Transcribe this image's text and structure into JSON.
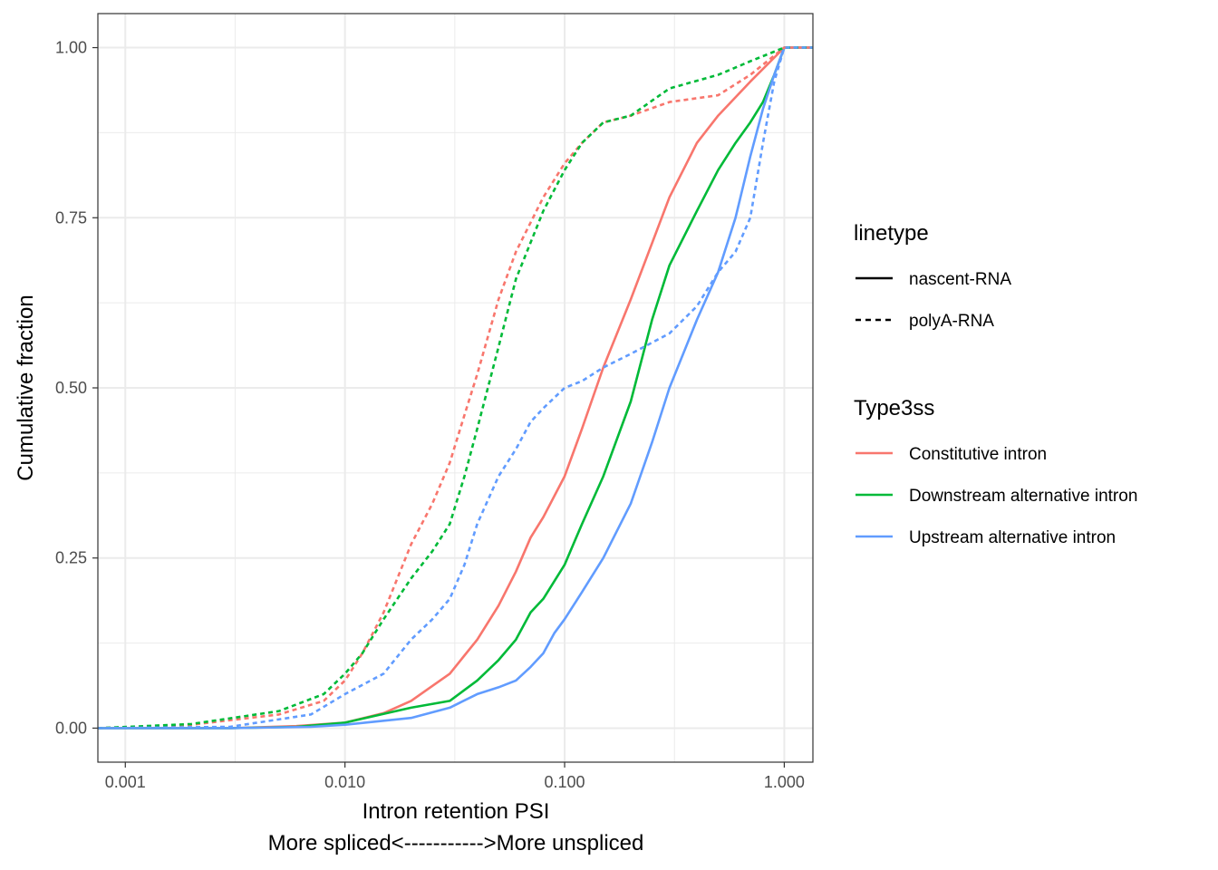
{
  "chart_data": {
    "type": "line",
    "title": "",
    "xlabel_line1": "Intron retention PSI",
    "xlabel_line2": "More spliced<----------->More unspliced",
    "ylabel": "Cumulative fraction",
    "x_scale": "log10",
    "xlim": [
      0.00075,
      1.35
    ],
    "ylim": [
      -0.05,
      1.05
    ],
    "x_ticks": [
      0.001,
      0.01,
      0.1,
      1.0
    ],
    "x_tick_labels": [
      "0.001",
      "0.010",
      "0.100",
      "1.000"
    ],
    "y_ticks": [
      0,
      0.25,
      0.5,
      0.75,
      1.0
    ],
    "y_tick_labels": [
      "0.00",
      "0.25",
      "0.50",
      "0.75",
      "1.00"
    ],
    "grid": true,
    "legend_position": "right",
    "legends": [
      {
        "title": "linetype",
        "entries": [
          {
            "label": "nascent-RNA",
            "dash": "solid"
          },
          {
            "label": "polyA-RNA",
            "dash": "dashed"
          }
        ]
      },
      {
        "title": "Type3ss",
        "entries": [
          {
            "label": "Constitutive intron",
            "color": "#F8766D"
          },
          {
            "label": "Downstream alternative intron",
            "color": "#00BA38"
          },
          {
            "label": "Upstream alternative intron",
            "color": "#619CFF"
          }
        ]
      }
    ],
    "series": [
      {
        "type3ss": "Constitutive intron",
        "linetype": "nascent-RNA",
        "color": "#F8766D",
        "dash": "solid",
        "x": [
          0.00075,
          0.003,
          0.006,
          0.01,
          0.015,
          0.02,
          0.03,
          0.04,
          0.05,
          0.06,
          0.07,
          0.08,
          0.1,
          0.12,
          0.15,
          0.2,
          0.3,
          0.4,
          0.5,
          0.7,
          1.0,
          1.35
        ],
        "y": [
          0.0,
          0.0,
          0.003,
          0.008,
          0.022,
          0.04,
          0.08,
          0.13,
          0.18,
          0.23,
          0.28,
          0.31,
          0.37,
          0.44,
          0.53,
          0.63,
          0.78,
          0.86,
          0.9,
          0.95,
          1.0,
          1.0
        ]
      },
      {
        "type3ss": "Downstream alternative intron",
        "linetype": "nascent-RNA",
        "color": "#00BA38",
        "dash": "solid",
        "x": [
          0.00075,
          0.003,
          0.006,
          0.01,
          0.02,
          0.03,
          0.04,
          0.05,
          0.06,
          0.07,
          0.08,
          0.1,
          0.12,
          0.15,
          0.2,
          0.25,
          0.3,
          0.4,
          0.5,
          0.6,
          0.7,
          0.8,
          0.9,
          1.0,
          1.35
        ],
        "y": [
          0.0,
          0.0,
          0.002,
          0.008,
          0.03,
          0.04,
          0.07,
          0.1,
          0.13,
          0.17,
          0.19,
          0.24,
          0.3,
          0.37,
          0.48,
          0.6,
          0.68,
          0.76,
          0.82,
          0.86,
          0.89,
          0.92,
          0.96,
          1.0,
          1.0
        ]
      },
      {
        "type3ss": "Upstream alternative intron",
        "linetype": "nascent-RNA",
        "color": "#619CFF",
        "dash": "solid",
        "x": [
          0.00075,
          0.003,
          0.007,
          0.01,
          0.02,
          0.03,
          0.04,
          0.05,
          0.06,
          0.07,
          0.08,
          0.09,
          0.1,
          0.12,
          0.15,
          0.2,
          0.25,
          0.3,
          0.4,
          0.5,
          0.6,
          0.7,
          0.8,
          0.9,
          1.0,
          1.35
        ],
        "y": [
          0.0,
          0.0,
          0.002,
          0.005,
          0.015,
          0.03,
          0.05,
          0.06,
          0.07,
          0.09,
          0.11,
          0.14,
          0.16,
          0.2,
          0.25,
          0.33,
          0.42,
          0.5,
          0.6,
          0.67,
          0.75,
          0.84,
          0.91,
          0.96,
          1.0,
          1.0
        ]
      },
      {
        "type3ss": "Constitutive intron",
        "linetype": "polyA-RNA",
        "color": "#F8766D",
        "dash": "dashed",
        "x": [
          0.00075,
          0.002,
          0.005,
          0.008,
          0.01,
          0.012,
          0.015,
          0.02,
          0.025,
          0.03,
          0.035,
          0.04,
          0.05,
          0.06,
          0.08,
          0.1,
          0.12,
          0.15,
          0.2,
          0.3,
          0.5,
          0.7,
          1.0,
          1.35
        ],
        "y": [
          0.0,
          0.005,
          0.02,
          0.04,
          0.07,
          0.11,
          0.17,
          0.27,
          0.33,
          0.39,
          0.46,
          0.52,
          0.63,
          0.7,
          0.78,
          0.83,
          0.86,
          0.89,
          0.9,
          0.92,
          0.93,
          0.96,
          1.0,
          1.0
        ]
      },
      {
        "type3ss": "Downstream alternative intron",
        "linetype": "polyA-RNA",
        "color": "#00BA38",
        "dash": "dashed",
        "x": [
          0.00075,
          0.002,
          0.005,
          0.008,
          0.01,
          0.012,
          0.015,
          0.02,
          0.025,
          0.03,
          0.035,
          0.04,
          0.05,
          0.06,
          0.08,
          0.1,
          0.12,
          0.15,
          0.2,
          0.3,
          0.5,
          0.7,
          1.0,
          1.35
        ],
        "y": [
          0.0,
          0.006,
          0.025,
          0.05,
          0.08,
          0.11,
          0.16,
          0.22,
          0.26,
          0.3,
          0.37,
          0.44,
          0.56,
          0.66,
          0.76,
          0.82,
          0.86,
          0.89,
          0.9,
          0.94,
          0.96,
          0.98,
          1.0,
          1.0
        ]
      },
      {
        "type3ss": "Upstream alternative intron",
        "linetype": "polyA-RNA",
        "color": "#619CFF",
        "dash": "dashed",
        "x": [
          0.00075,
          0.003,
          0.007,
          0.01,
          0.015,
          0.02,
          0.025,
          0.03,
          0.035,
          0.04,
          0.05,
          0.06,
          0.07,
          0.08,
          0.1,
          0.12,
          0.15,
          0.2,
          0.3,
          0.4,
          0.5,
          0.6,
          0.7,
          0.8,
          0.9,
          1.0,
          1.35
        ],
        "y": [
          0.0,
          0.002,
          0.02,
          0.05,
          0.08,
          0.13,
          0.16,
          0.19,
          0.24,
          0.3,
          0.37,
          0.41,
          0.45,
          0.47,
          0.5,
          0.51,
          0.53,
          0.55,
          0.58,
          0.62,
          0.67,
          0.7,
          0.75,
          0.86,
          0.95,
          1.0,
          1.0
        ]
      }
    ]
  }
}
